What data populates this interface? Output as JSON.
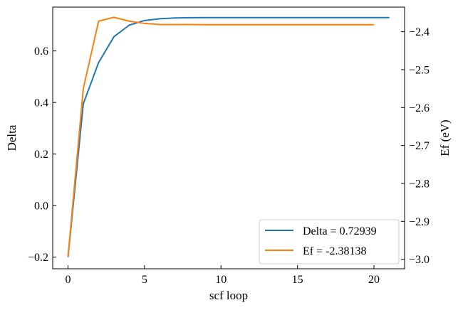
{
  "chart_data": {
    "type": "line",
    "title": "",
    "xlabel": "scf loop",
    "ylabel_left": "Delta",
    "ylabel_right": "Ef (eV)",
    "xlim": [
      -1,
      22
    ],
    "ylim_left": [
      -0.245,
      0.77
    ],
    "ylim_right": [
      -3.025,
      -2.335
    ],
    "x_ticks": [
      0,
      5,
      10,
      15,
      20
    ],
    "y_ticks_left": [
      -0.2,
      0.0,
      0.2,
      0.4,
      0.6
    ],
    "y_ticks_right": [
      -3.0,
      -2.9,
      -2.8,
      -2.7,
      -2.6,
      -2.5,
      -2.4
    ],
    "x_tick_labels": [
      "0",
      "5",
      "10",
      "15",
      "20"
    ],
    "y_tick_labels_left": [
      "−0.2",
      "0.0",
      "0.2",
      "0.4",
      "0.6"
    ],
    "y_tick_labels_right": [
      "−3.0",
      "−2.9",
      "−2.8",
      "−2.7",
      "−2.6",
      "−2.5",
      "−2.4"
    ],
    "grid": false,
    "legend_position": "bottom-right",
    "series": [
      {
        "name": "Delta = 0.72939",
        "axis": "left",
        "color": "#1f77b4",
        "x": [
          0,
          1,
          2,
          3,
          4,
          5,
          6,
          7,
          8,
          9,
          10,
          11,
          12,
          13,
          14,
          15,
          16,
          17,
          18,
          19,
          20,
          21
        ],
        "y": [
          -0.2,
          0.395,
          0.555,
          0.655,
          0.7,
          0.718,
          0.725,
          0.728,
          0.729,
          0.7293,
          0.7294,
          0.7294,
          0.7294,
          0.7294,
          0.7294,
          0.7294,
          0.7294,
          0.7294,
          0.7294,
          0.7294,
          0.7294,
          0.7294
        ]
      },
      {
        "name": "Ef = -2.38138",
        "axis": "right",
        "color": "#ff7f0e",
        "x": [
          0,
          1,
          2,
          3,
          4,
          5,
          6,
          7,
          8,
          9,
          10,
          11,
          12,
          13,
          14,
          15,
          16,
          17,
          18,
          19,
          20
        ],
        "y": [
          -2.993,
          -2.55,
          -2.372,
          -2.362,
          -2.372,
          -2.378,
          -2.381,
          -2.381,
          -2.381,
          -2.3814,
          -2.3814,
          -2.3814,
          -2.3814,
          -2.3814,
          -2.3814,
          -2.3814,
          -2.3814,
          -2.3814,
          -2.3814,
          -2.3814,
          -2.3814
        ]
      }
    ]
  }
}
